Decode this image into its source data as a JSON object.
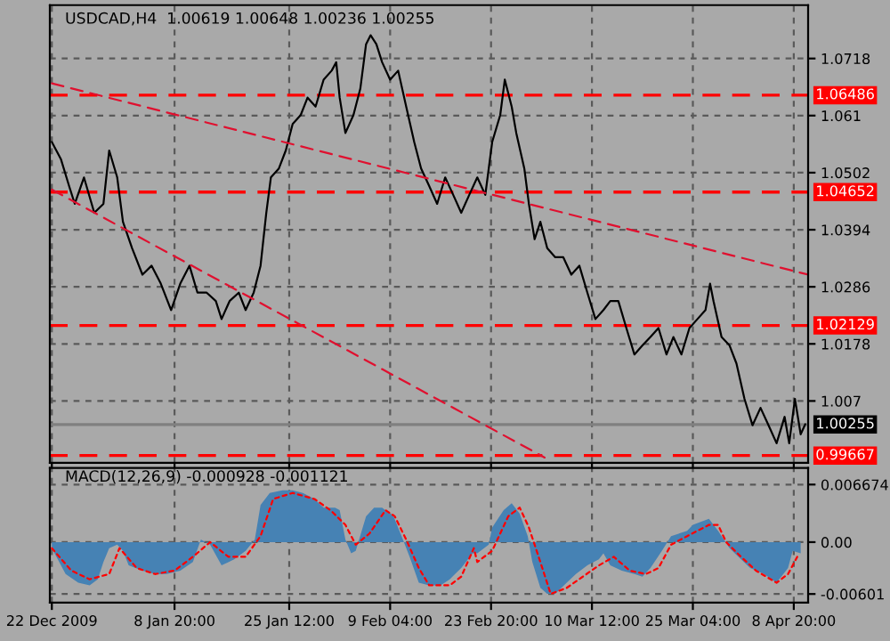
{
  "chart_data": [
    {
      "type": "line",
      "title": "USDCAD,H4  1.00619 1.00648 1.00236 1.00255",
      "grid": true,
      "tick_labels": "y",
      "xlim": [
        "2009-12-21T17:00",
        "2010-04-10T22:00"
      ],
      "xticks": [
        {
          "value": "2009-12-22T00:00",
          "label": null
        },
        {
          "value": "2010-01-08T20:00",
          "label": null
        },
        {
          "value": "2010-01-25T12:00",
          "label": null
        },
        {
          "value": "2010-02-09T04:00",
          "label": null
        },
        {
          "value": "2010-02-23T20:00",
          "label": null
        },
        {
          "value": "2010-03-10T12:00",
          "label": null
        },
        {
          "value": "2010-03-25T04:00",
          "label": null
        },
        {
          "value": "2010-04-08T20:00",
          "label": null
        }
      ],
      "ylim": [
        0.9953,
        1.0819
      ],
      "yticks": [
        1.0718,
        1.061,
        1.0502,
        1.0394,
        1.0286,
        1.0178,
        1.007
      ],
      "ref_lines": [
        {
          "axis": "y",
          "value": 1.06486,
          "label": "1.06486",
          "color": "#ff0000",
          "line_style": "dashed"
        },
        {
          "axis": "y",
          "value": 1.04652,
          "label": "1.04652",
          "color": "#ff0000",
          "line_style": "dashed"
        },
        {
          "axis": "y",
          "value": 1.02129,
          "label": "1.02129",
          "color": "#ff0000",
          "line_style": "dashed"
        },
        {
          "axis": "y",
          "value": 0.99667,
          "label": "0.99667",
          "color": "#ff0000",
          "line_style": "dashed"
        },
        {
          "axis": "y",
          "value": 1.00255,
          "label": "1.00255",
          "color": "#808080",
          "line_style": "solid"
        }
      ],
      "series": [
        {
          "color": "#000000",
          "line_style": "solid",
          "x": [
            "2009-12-22T00:00",
            "2009-12-23T08:00",
            "2009-12-24T12:00",
            "2009-12-25T08:00",
            "2009-12-26T16:00",
            "2009-12-28T04:00",
            "2009-12-29T12:00",
            "2009-12-30T08:00",
            "2009-12-31T12:00",
            "2010-01-01T08:00",
            "2010-01-02T16:00",
            "2010-01-04T04:00",
            "2010-01-05T12:00",
            "2010-01-06T20:00",
            "2010-01-08T08:00",
            "2010-01-09T16:00",
            "2010-01-11T00:00",
            "2010-01-12T04:00",
            "2010-01-13T12:00",
            "2010-01-14T20:00",
            "2010-01-15T16:00",
            "2010-01-16T20:00",
            "2010-01-18T04:00",
            "2010-01-19T04:00",
            "2010-01-20T08:00",
            "2010-01-21T08:00",
            "2010-01-22T04:00",
            "2010-01-22T20:00",
            "2010-01-24T00:00",
            "2010-01-25T00:00",
            "2010-01-26T00:00",
            "2010-01-27T04:00",
            "2010-01-28T04:00",
            "2010-01-29T08:00",
            "2010-01-30T12:00",
            "2010-01-31T16:00",
            "2010-02-01T08:00",
            "2010-02-01T20:00",
            "2010-02-02T16:00",
            "2010-02-03T20:00",
            "2010-02-04T20:00",
            "2010-02-05T16:00",
            "2010-02-06T08:00",
            "2010-02-07T04:00",
            "2010-02-08T00:00",
            "2010-02-09T04:00",
            "2010-02-10T08:00",
            "2010-02-11T12:00",
            "2010-02-12T16:00",
            "2010-02-13T16:00",
            "2010-02-14T20:00",
            "2010-02-16T00:00",
            "2010-02-17T04:00",
            "2010-02-18T08:00",
            "2010-02-19T12:00",
            "2010-02-20T16:00",
            "2010-02-21T20:00",
            "2010-02-23T00:00",
            "2010-02-24T00:00",
            "2010-02-25T04:00",
            "2010-02-25T20:00",
            "2010-02-26T20:00",
            "2010-02-27T12:00",
            "2010-02-28T16:00",
            "2010-03-01T08:00",
            "2010-03-02T04:00",
            "2010-03-03T00:00",
            "2010-03-04T00:00",
            "2010-03-05T04:00",
            "2010-03-06T08:00",
            "2010-03-07T12:00",
            "2010-03-08T16:00",
            "2010-03-09T20:00",
            "2010-03-11T00:00",
            "2010-03-12T04:00",
            "2010-03-13T04:00",
            "2010-03-14T08:00",
            "2010-03-15T12:00",
            "2010-03-16T16:00",
            "2010-03-17T20:00",
            "2010-03-19T00:00",
            "2010-03-20T04:00",
            "2010-03-21T08:00",
            "2010-03-22T08:00",
            "2010-03-23T12:00",
            "2010-03-24T16:00",
            "2010-03-25T20:00",
            "2010-03-27T00:00",
            "2010-03-27T16:00",
            "2010-03-28T04:00",
            "2010-03-29T08:00",
            "2010-03-30T12:00",
            "2010-03-31T12:00",
            "2010-04-01T16:00",
            "2010-04-02T20:00",
            "2010-04-04T00:00",
            "2010-04-05T04:00",
            "2010-04-06T08:00",
            "2010-04-07T12:00",
            "2010-04-08T04:00",
            "2010-04-09T00:00",
            "2010-04-09T20:00",
            "2010-04-10T12:00"
          ],
          "values": [
            1.056,
            1.0527,
            1.0477,
            1.0443,
            1.0493,
            1.0426,
            1.0443,
            1.0544,
            1.0493,
            1.0409,
            1.0359,
            1.0309,
            1.0326,
            1.0292,
            1.0242,
            1.0292,
            1.0326,
            1.0275,
            1.0275,
            1.0259,
            1.0225,
            1.0259,
            1.0275,
            1.0242,
            1.0275,
            1.0326,
            1.0426,
            1.0493,
            1.051,
            1.0544,
            1.0594,
            1.0611,
            1.0644,
            1.0627,
            1.0678,
            1.0695,
            1.0711,
            1.0644,
            1.0577,
            1.0611,
            1.0661,
            1.0745,
            1.0762,
            1.0745,
            1.0711,
            1.0678,
            1.0695,
            1.0627,
            1.056,
            1.051,
            1.0477,
            1.0443,
            1.0493,
            1.046,
            1.0426,
            1.046,
            1.0493,
            1.046,
            1.056,
            1.0611,
            1.0678,
            1.0627,
            1.0577,
            1.051,
            1.0443,
            1.0376,
            1.0409,
            1.0359,
            1.0342,
            1.0342,
            1.0309,
            1.0326,
            1.0275,
            1.0225,
            1.0242,
            1.0259,
            1.0259,
            1.0208,
            1.0158,
            1.0175,
            1.0191,
            1.0208,
            1.0158,
            1.0191,
            1.0158,
            1.0208,
            1.0225,
            1.0242,
            1.0292,
            1.0259,
            1.0191,
            1.0175,
            1.0141,
            1.0074,
            1.0024,
            1.0057,
            1.0024,
            0.999,
            1.004,
            0.999,
            1.0074,
            1.0007,
            1.0026
          ]
        },
        {
          "color": "#e0102f",
          "line_style": "dashed",
          "x": [
            "2009-12-22T00:00",
            "2010-04-10T22:00"
          ],
          "values": [
            1.0671,
            1.0309
          ]
        },
        {
          "color": "#e0102f",
          "line_style": "dashed",
          "x": [
            "2009-12-22T00:00",
            "2010-03-03T15:00"
          ],
          "values": [
            1.047,
            0.9963
          ]
        }
      ]
    },
    {
      "type": "area",
      "title": "MACD(12,26,9) -0.000928 -0.001121",
      "grid": true,
      "xlim": [
        "2009-12-21T17:00",
        "2010-04-10T22:00"
      ],
      "xticks": [
        {
          "value": "2009-12-22T00:00",
          "label": "22 Dec 2009"
        },
        {
          "value": "2010-01-08T20:00",
          "label": "8 Jan 20:00"
        },
        {
          "value": "2010-01-25T12:00",
          "label": "25 Jan 12:00"
        },
        {
          "value": "2010-02-09T04:00",
          "label": "9 Feb 04:00"
        },
        {
          "value": "2010-02-23T20:00",
          "label": "23 Feb 20:00"
        },
        {
          "value": "2010-03-10T12:00",
          "label": "10 Mar 12:00"
        },
        {
          "value": "2010-03-25T04:00",
          "label": "25 Mar 04:00"
        },
        {
          "value": "2010-04-08T20:00",
          "label": "8 Apr 20:00"
        }
      ],
      "ylim": [
        -0.007,
        0.0086
      ],
      "yticks": [
        {
          "value": 0.006674,
          "label": "0.006674"
        },
        {
          "value": 0,
          "label": "0.00"
        },
        {
          "value": -0.00601,
          "label": "-0.00601"
        }
      ],
      "series": [
        {
          "color": "#4682b4",
          "x": [
            "2009-12-22T00:00",
            "2009-12-24T00:00",
            "2009-12-25T20:00",
            "2009-12-27T12:00",
            "2009-12-28T16:00",
            "2009-12-29T12:00",
            "2009-12-30T08:00",
            "2009-12-31T12:00",
            "2010-01-01T08:00",
            "2010-01-02T04:00",
            "2010-01-04T04:00",
            "2010-01-06T00:00",
            "2010-01-07T16:00",
            "2010-01-09T16:00",
            "2010-01-11T12:00",
            "2010-01-12T16:00",
            "2010-01-14T00:00",
            "2010-01-15T16:00",
            "2010-01-17T12:00",
            "2010-01-19T04:00",
            "2010-01-20T12:00",
            "2010-01-21T08:00",
            "2010-01-22T16:00",
            "2010-01-24T12:00",
            "2010-01-26T00:00",
            "2010-01-27T12:00",
            "2010-01-29T04:00",
            "2010-01-30T12:00",
            "2010-02-01T04:00",
            "2010-02-01T20:00",
            "2010-02-02T16:00",
            "2010-02-03T12:00",
            "2010-02-04T04:00",
            "2010-02-05T16:00",
            "2010-02-06T20:00",
            "2010-02-08T00:00",
            "2010-02-09T16:00",
            "2010-02-10T20:00",
            "2010-02-12T00:00",
            "2010-02-13T08:00",
            "2010-02-14T20:00",
            "2010-02-16T12:00",
            "2010-02-17T20:00",
            "2010-02-19T12:00",
            "2010-02-21T04:00",
            "2010-02-21T20:00",
            "2010-02-23T12:00",
            "2010-02-24T00:00",
            "2010-02-25T16:00",
            "2010-02-26T20:00",
            "2010-02-28T00:00",
            "2010-03-01T04:00",
            "2010-03-01T20:00",
            "2010-03-03T00:00",
            "2010-03-04T00:00",
            "2010-03-05T04:00",
            "2010-03-06T20:00",
            "2010-03-08T04:00",
            "2010-03-09T20:00",
            "2010-03-11T12:00",
            "2010-03-12T04:00",
            "2010-03-13T04:00",
            "2010-03-14T20:00",
            "2010-03-16T16:00",
            "2010-03-17T20:00",
            "2010-03-19T00:00",
            "2010-03-20T16:00",
            "2010-03-22T00:00",
            "2010-03-24T08:00",
            "2010-03-25T04:00",
            "2010-03-27T12:00",
            "2010-03-28T20:00",
            "2010-03-30T12:00",
            "2010-04-01T04:00",
            "2010-04-02T12:00",
            "2010-04-04T12:00",
            "2010-04-06T08:00",
            "2010-04-08T00:00",
            "2010-04-08T16:00",
            "2010-04-09T20:00"
          ],
          "values": [
            -0.0007,
            -0.0037,
            -0.0047,
            -0.005,
            -0.0043,
            -0.0023,
            -0.0007,
            -0.0003,
            -0.001,
            -0.0027,
            -0.0033,
            -0.0037,
            -0.0037,
            -0.0033,
            -0.0023,
            0.0003,
            -0.0003,
            -0.0027,
            -0.002,
            -0.001,
            0.0003,
            0.0043,
            0.0057,
            0.006,
            0.006,
            0.0057,
            0.005,
            0.004,
            0.004,
            0.0037,
            0.0003,
            -0.0013,
            -0.001,
            0.003,
            0.004,
            0.004,
            0.003,
            0.0007,
            -0.0017,
            -0.0047,
            -0.005,
            -0.005,
            -0.0043,
            -0.003,
            -0.0013,
            -0.0013,
            -0.0003,
            0.0017,
            0.0037,
            0.0045,
            0.0033,
            0.0007,
            -0.0023,
            -0.0053,
            -0.006,
            -0.006,
            -0.0047,
            -0.0037,
            -0.0027,
            -0.002,
            -0.0013,
            -0.0027,
            -0.0033,
            -0.0037,
            -0.004,
            -0.003,
            -0.001,
            0.0007,
            0.0013,
            0.002,
            0.0027,
            0.0013,
            -0.0007,
            -0.002,
            -0.003,
            -0.0037,
            -0.0047,
            -0.003,
            -0.001,
            -0.0013
          ]
        },
        {
          "type": "line",
          "color": "#ff0000",
          "line_style": "dotted",
          "x": [
            "2009-12-22T00:00",
            "2009-12-24T20:00",
            "2009-12-27T12:00",
            "2009-12-30T08:00",
            "2009-12-31T20:00",
            "2010-01-03T08:00",
            "2010-01-06T00:00",
            "2010-01-08T20:00",
            "2010-01-11T12:00",
            "2010-01-14T00:00",
            "2010-01-16T16:00",
            "2010-01-19T04:00",
            "2010-01-21T08:00",
            "2010-01-23T04:00",
            "2010-01-26T00:00",
            "2010-01-29T04:00",
            "2010-01-31T12:00",
            "2010-02-02T16:00",
            "2010-02-04T04:00",
            "2010-02-06T04:00",
            "2010-02-08T12:00",
            "2010-02-09T20:00",
            "2010-02-11T12:00",
            "2010-02-13T08:00",
            "2010-02-14T20:00",
            "2010-02-17T20:00",
            "2010-02-19T12:00",
            "2010-02-21T08:00",
            "2010-02-21T20:00",
            "2010-02-24T00:00",
            "2010-02-26T08:00",
            "2010-02-28T00:00",
            "2010-03-01T08:00",
            "2010-03-03T00:00",
            "2010-03-04T12:00",
            "2010-03-06T20:00",
            "2010-03-09T04:00",
            "2010-03-11T12:00",
            "2010-03-13T16:00",
            "2010-03-16T00:00",
            "2010-03-18T08:00",
            "2010-03-20T04:00",
            "2010-03-22T00:00",
            "2010-03-24T08:00",
            "2010-03-27T12:00",
            "2010-03-28T20:00",
            "2010-03-30T00:00",
            "2010-04-01T04:00",
            "2010-04-03T08:00",
            "2010-04-06T08:00",
            "2010-04-08T00:00",
            "2010-04-09T08:00"
          ],
          "values": [
            -0.0007,
            -0.0033,
            -0.0043,
            -0.0037,
            -0.0007,
            -0.003,
            -0.0037,
            -0.0033,
            -0.0017,
            0,
            -0.0017,
            -0.0017,
            0.0007,
            0.005,
            0.0057,
            0.005,
            0.0037,
            0.002,
            -0.0003,
            0.001,
            0.0037,
            0.003,
            0.0003,
            -0.003,
            -0.005,
            -0.005,
            -0.004,
            -0.0007,
            -0.0023,
            -0.001,
            0.003,
            0.004,
            0.0017,
            -0.0023,
            -0.006,
            -0.0053,
            -0.004,
            -0.0027,
            -0.0017,
            -0.0033,
            -0.0037,
            -0.003,
            -0.0003,
            0.0007,
            0.002,
            0.002,
            0,
            -0.0017,
            -0.0033,
            -0.0047,
            -0.0037,
            -0.0017
          ]
        }
      ]
    }
  ]
}
